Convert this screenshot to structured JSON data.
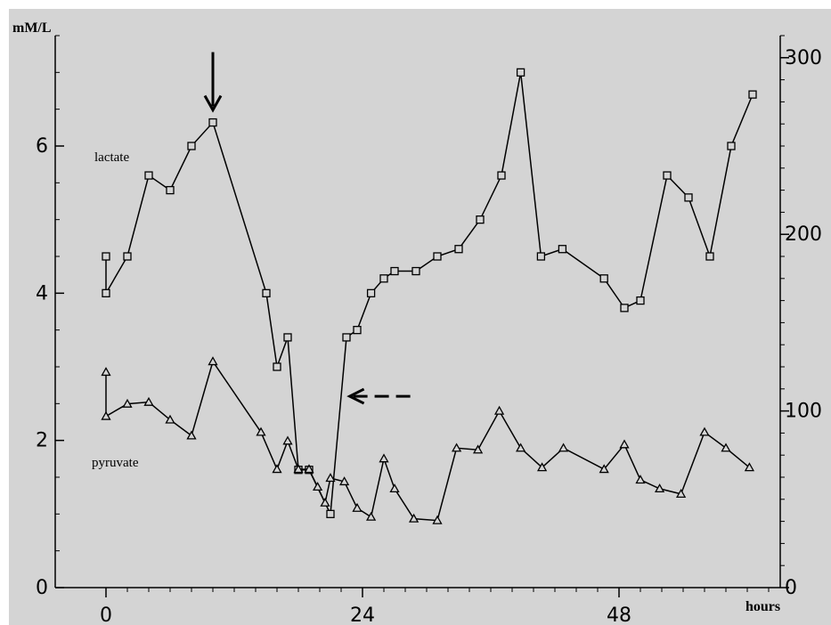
{
  "chart_data": {
    "type": "line",
    "title": "",
    "xlabel": "hours",
    "ylabel_left": "mM/L",
    "ylabel_right": "",
    "xlim": [
      -4,
      64
    ],
    "ylim_left": [
      0,
      7.5
    ],
    "ylim_right": [
      0,
      312.5
    ],
    "x_ticks": [
      0,
      24,
      48
    ],
    "y_ticks_left": [
      0,
      2,
      4,
      6
    ],
    "y_ticks_right": [
      0,
      100,
      200,
      300
    ],
    "grid": false,
    "background": "#d4d4d4",
    "series": [
      {
        "name": "lactate",
        "marker": "square",
        "line_style": "solid",
        "axis": "left",
        "color": "#000000",
        "points": [
          [
            0,
            4.5
          ],
          [
            0,
            4.0
          ],
          [
            2,
            4.5
          ],
          [
            4,
            5.6
          ],
          [
            6,
            5.4
          ],
          [
            8,
            6.0
          ],
          [
            10,
            6.32
          ],
          [
            15,
            4.0
          ],
          [
            16,
            3.0
          ],
          [
            17,
            3.4
          ],
          [
            18,
            1.6
          ],
          [
            19,
            1.6
          ],
          [
            21,
            1.0
          ],
          [
            22.5,
            3.4
          ],
          [
            23.5,
            3.5
          ],
          [
            24.8,
            4.0
          ],
          [
            26,
            4.2
          ],
          [
            27,
            4.3
          ],
          [
            29,
            4.3
          ],
          [
            31,
            4.5
          ],
          [
            33,
            4.6
          ],
          [
            35,
            5.0
          ],
          [
            37,
            5.6
          ],
          [
            38.8,
            7.0
          ],
          [
            40.7,
            4.5
          ],
          [
            42.7,
            4.6
          ],
          [
            46.6,
            4.2
          ],
          [
            48.5,
            3.8
          ],
          [
            50,
            3.9
          ],
          [
            52.5,
            5.6
          ],
          [
            54.5,
            5.3
          ],
          [
            56.5,
            4.5
          ],
          [
            58.5,
            6.0
          ],
          [
            60.5,
            6.7
          ]
        ]
      },
      {
        "name": "pyruvate",
        "marker": "triangle",
        "line_style": "solid",
        "axis": "right",
        "color": "#000000",
        "points": [
          [
            0,
            122
          ],
          [
            0,
            97
          ],
          [
            2,
            104
          ],
          [
            4,
            105
          ],
          [
            6,
            95
          ],
          [
            8,
            86
          ],
          [
            10,
            128
          ],
          [
            14.5,
            88
          ],
          [
            16,
            67
          ],
          [
            17,
            83
          ],
          [
            18,
            67
          ],
          [
            19,
            67
          ],
          [
            19.8,
            57
          ],
          [
            20.5,
            48
          ],
          [
            21,
            62
          ],
          [
            22.3,
            60
          ],
          [
            23.5,
            45
          ],
          [
            24.8,
            40
          ],
          [
            26,
            73
          ],
          [
            27,
            56
          ],
          [
            28.8,
            39
          ],
          [
            31,
            38
          ],
          [
            32.8,
            79
          ],
          [
            34.8,
            78
          ],
          [
            36.8,
            100
          ],
          [
            38.8,
            79
          ],
          [
            40.8,
            68
          ],
          [
            42.8,
            79
          ],
          [
            46.6,
            67
          ],
          [
            48.5,
            81
          ],
          [
            50,
            61
          ],
          [
            51.8,
            56
          ],
          [
            53.8,
            53
          ],
          [
            56,
            88
          ],
          [
            58,
            79
          ],
          [
            60.2,
            68
          ]
        ]
      }
    ],
    "annotations": [
      {
        "type": "arrow",
        "style": "solid",
        "direction": "down",
        "target": [
          10,
          6.32
        ]
      },
      {
        "type": "arrow",
        "style": "dashed",
        "direction": "left",
        "target": [
          22.8,
          2.6
        ]
      }
    ]
  }
}
